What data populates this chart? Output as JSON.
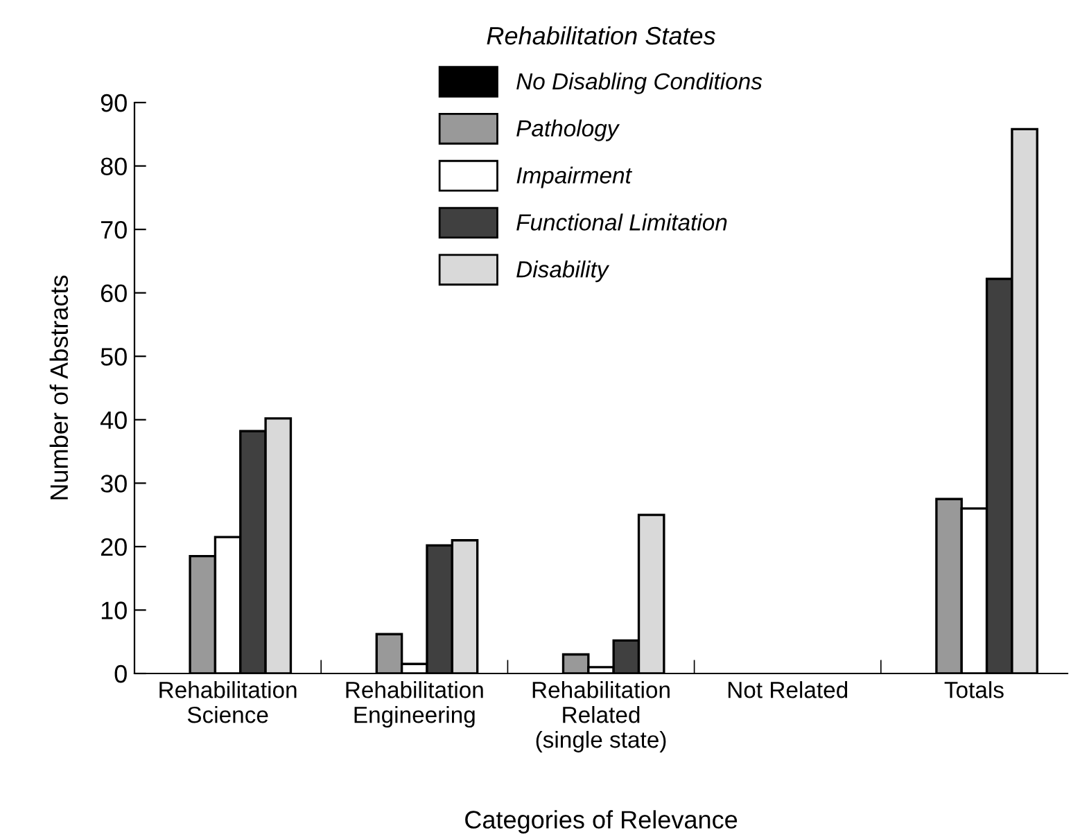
{
  "chart_data": {
    "type": "bar",
    "xlabel": "Categories of Relevance",
    "ylabel": "Number of Abstracts",
    "legend_title": "Rehabilitation States",
    "categories": [
      "Rehabilitation\nScience",
      "Rehabilitation\nEngineering",
      "Rehabilitation\nRelated\n(single state)",
      "Not Related",
      "Totals"
    ],
    "series": [
      {
        "name": "No Disabling Conditions",
        "color": "#000000",
        "values": [
          0,
          0,
          0,
          0,
          0
        ]
      },
      {
        "name": "Pathology",
        "color": "#999999",
        "values": [
          18.5,
          6.2,
          3,
          0,
          27.5
        ]
      },
      {
        "name": "Impairment",
        "color": "#ffffff",
        "values": [
          21.5,
          1.5,
          1,
          0,
          26
        ]
      },
      {
        "name": "Functional Limitation",
        "color": "#404040",
        "values": [
          38.2,
          20.2,
          5.2,
          0,
          62.2
        ]
      },
      {
        "name": "Disability",
        "color": "#d9d9d9",
        "values": [
          40.2,
          21,
          25,
          0,
          85.8
        ]
      }
    ],
    "ylim": [
      0,
      90
    ],
    "yticks": [
      0,
      10,
      20,
      30,
      40,
      50,
      60,
      70,
      80,
      90
    ],
    "grid": false,
    "legend": "top"
  }
}
